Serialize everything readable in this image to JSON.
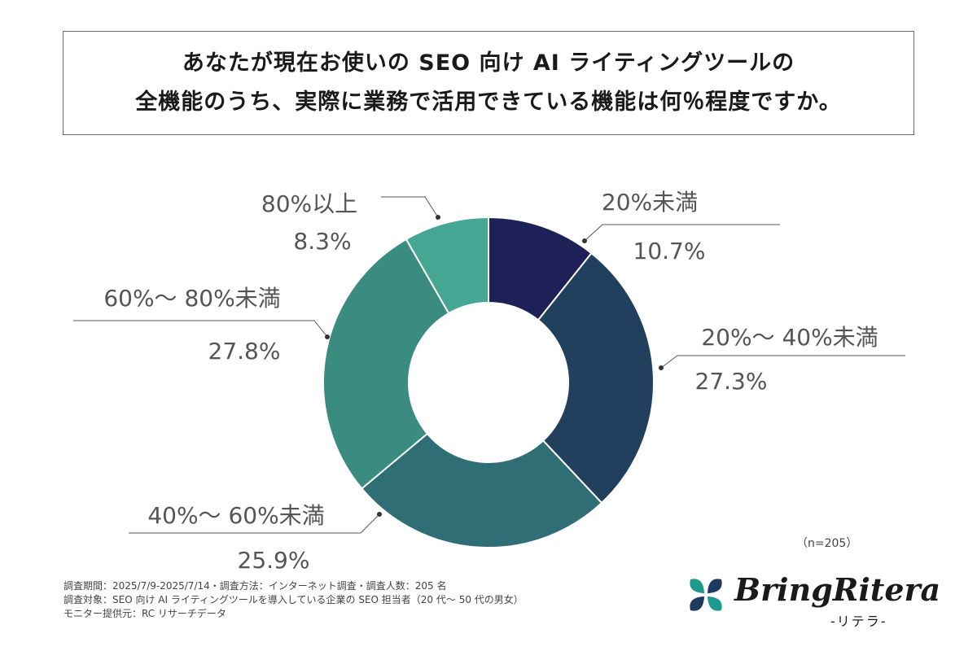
{
  "title": {
    "line1": "あなたが現在お使いの SEO 向け AI ライティングツールの",
    "line2": "全機能のうち、実際に業務で活用できている機能は何％程度ですか。"
  },
  "chart_data": {
    "type": "pie",
    "donut": true,
    "categories": [
      "20%未満",
      "20%〜 40%未満",
      "40%〜 60%未満",
      "60%〜 80%未満",
      "80%以上"
    ],
    "value_labels": [
      "10.7%",
      "27.3%",
      "25.9%",
      "27.8%",
      "8.3%"
    ],
    "values": [
      10.7,
      27.3,
      25.9,
      27.8,
      8.3
    ],
    "colors": [
      "#1e2157",
      "#21405e",
      "#2e6e74",
      "#3a8b80",
      "#45a694"
    ]
  },
  "sample_size": "（n=205）",
  "footnotes": [
    "調査期間：2025/7/9-2025/7/14・調査方法：インターネット調査・調査人数：205 名",
    "調査対象：SEO 向け AI ライティングツールを導入している企業の SEO 担当者（20 代〜 50 代の男女）",
    "モニター提供元：RC リサーチデータ"
  ],
  "logo": {
    "name": "BringRitera",
    "sub": "-リテラ-",
    "colors": [
      "#1d9a8c",
      "#1e3a5f"
    ]
  }
}
